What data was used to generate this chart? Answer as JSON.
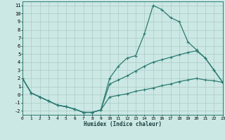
{
  "xlabel": "Humidex (Indice chaleur)",
  "background_color": "#cce8e4",
  "grid_color": "#b0ceca",
  "line_color": "#2a7b72",
  "xlim": [
    0,
    23
  ],
  "ylim": [
    -2.5,
    11.5
  ],
  "xticks": [
    0,
    1,
    2,
    3,
    4,
    5,
    6,
    7,
    8,
    9,
    10,
    11,
    12,
    13,
    14,
    15,
    16,
    17,
    18,
    19,
    20,
    21,
    22,
    23
  ],
  "yticks": [
    -2,
    -1,
    0,
    1,
    2,
    3,
    4,
    5,
    6,
    7,
    8,
    9,
    10,
    11
  ],
  "line1_x": [
    0,
    1,
    2,
    3,
    4,
    5,
    6,
    7,
    8,
    9,
    10,
    11,
    12,
    13,
    14,
    15,
    16,
    17,
    18,
    19,
    20,
    21,
    22,
    23
  ],
  "line1_y": [
    2.0,
    0.2,
    -0.3,
    -0.8,
    -1.3,
    -1.5,
    -1.8,
    -2.2,
    -2.2,
    -1.9,
    2.0,
    3.5,
    4.5,
    4.8,
    7.5,
    11.0,
    10.5,
    9.5,
    9.0,
    6.5,
    5.5,
    4.5,
    3.0,
    1.5
  ],
  "line2_x": [
    0,
    1,
    2,
    3,
    4,
    5,
    6,
    7,
    8,
    9,
    10,
    11,
    12,
    13,
    14,
    15,
    16,
    17,
    18,
    19,
    20,
    21,
    22,
    23
  ],
  "line2_y": [
    2.0,
    0.2,
    -0.3,
    -0.8,
    -1.3,
    -1.5,
    -1.8,
    -2.2,
    -2.2,
    -1.9,
    1.3,
    1.8,
    2.3,
    2.9,
    3.5,
    4.0,
    4.3,
    4.6,
    4.9,
    5.2,
    5.4,
    4.5,
    3.0,
    1.5
  ],
  "line3_x": [
    0,
    1,
    2,
    3,
    4,
    5,
    6,
    7,
    8,
    9,
    10,
    11,
    12,
    13,
    14,
    15,
    16,
    17,
    18,
    19,
    20,
    21,
    22,
    23
  ],
  "line3_y": [
    2.0,
    0.2,
    -0.3,
    -0.8,
    -1.3,
    -1.5,
    -1.8,
    -2.2,
    -2.2,
    -1.9,
    -0.3,
    -0.1,
    0.1,
    0.4,
    0.6,
    0.8,
    1.1,
    1.3,
    1.6,
    1.8,
    2.0,
    1.8,
    1.7,
    1.5
  ]
}
